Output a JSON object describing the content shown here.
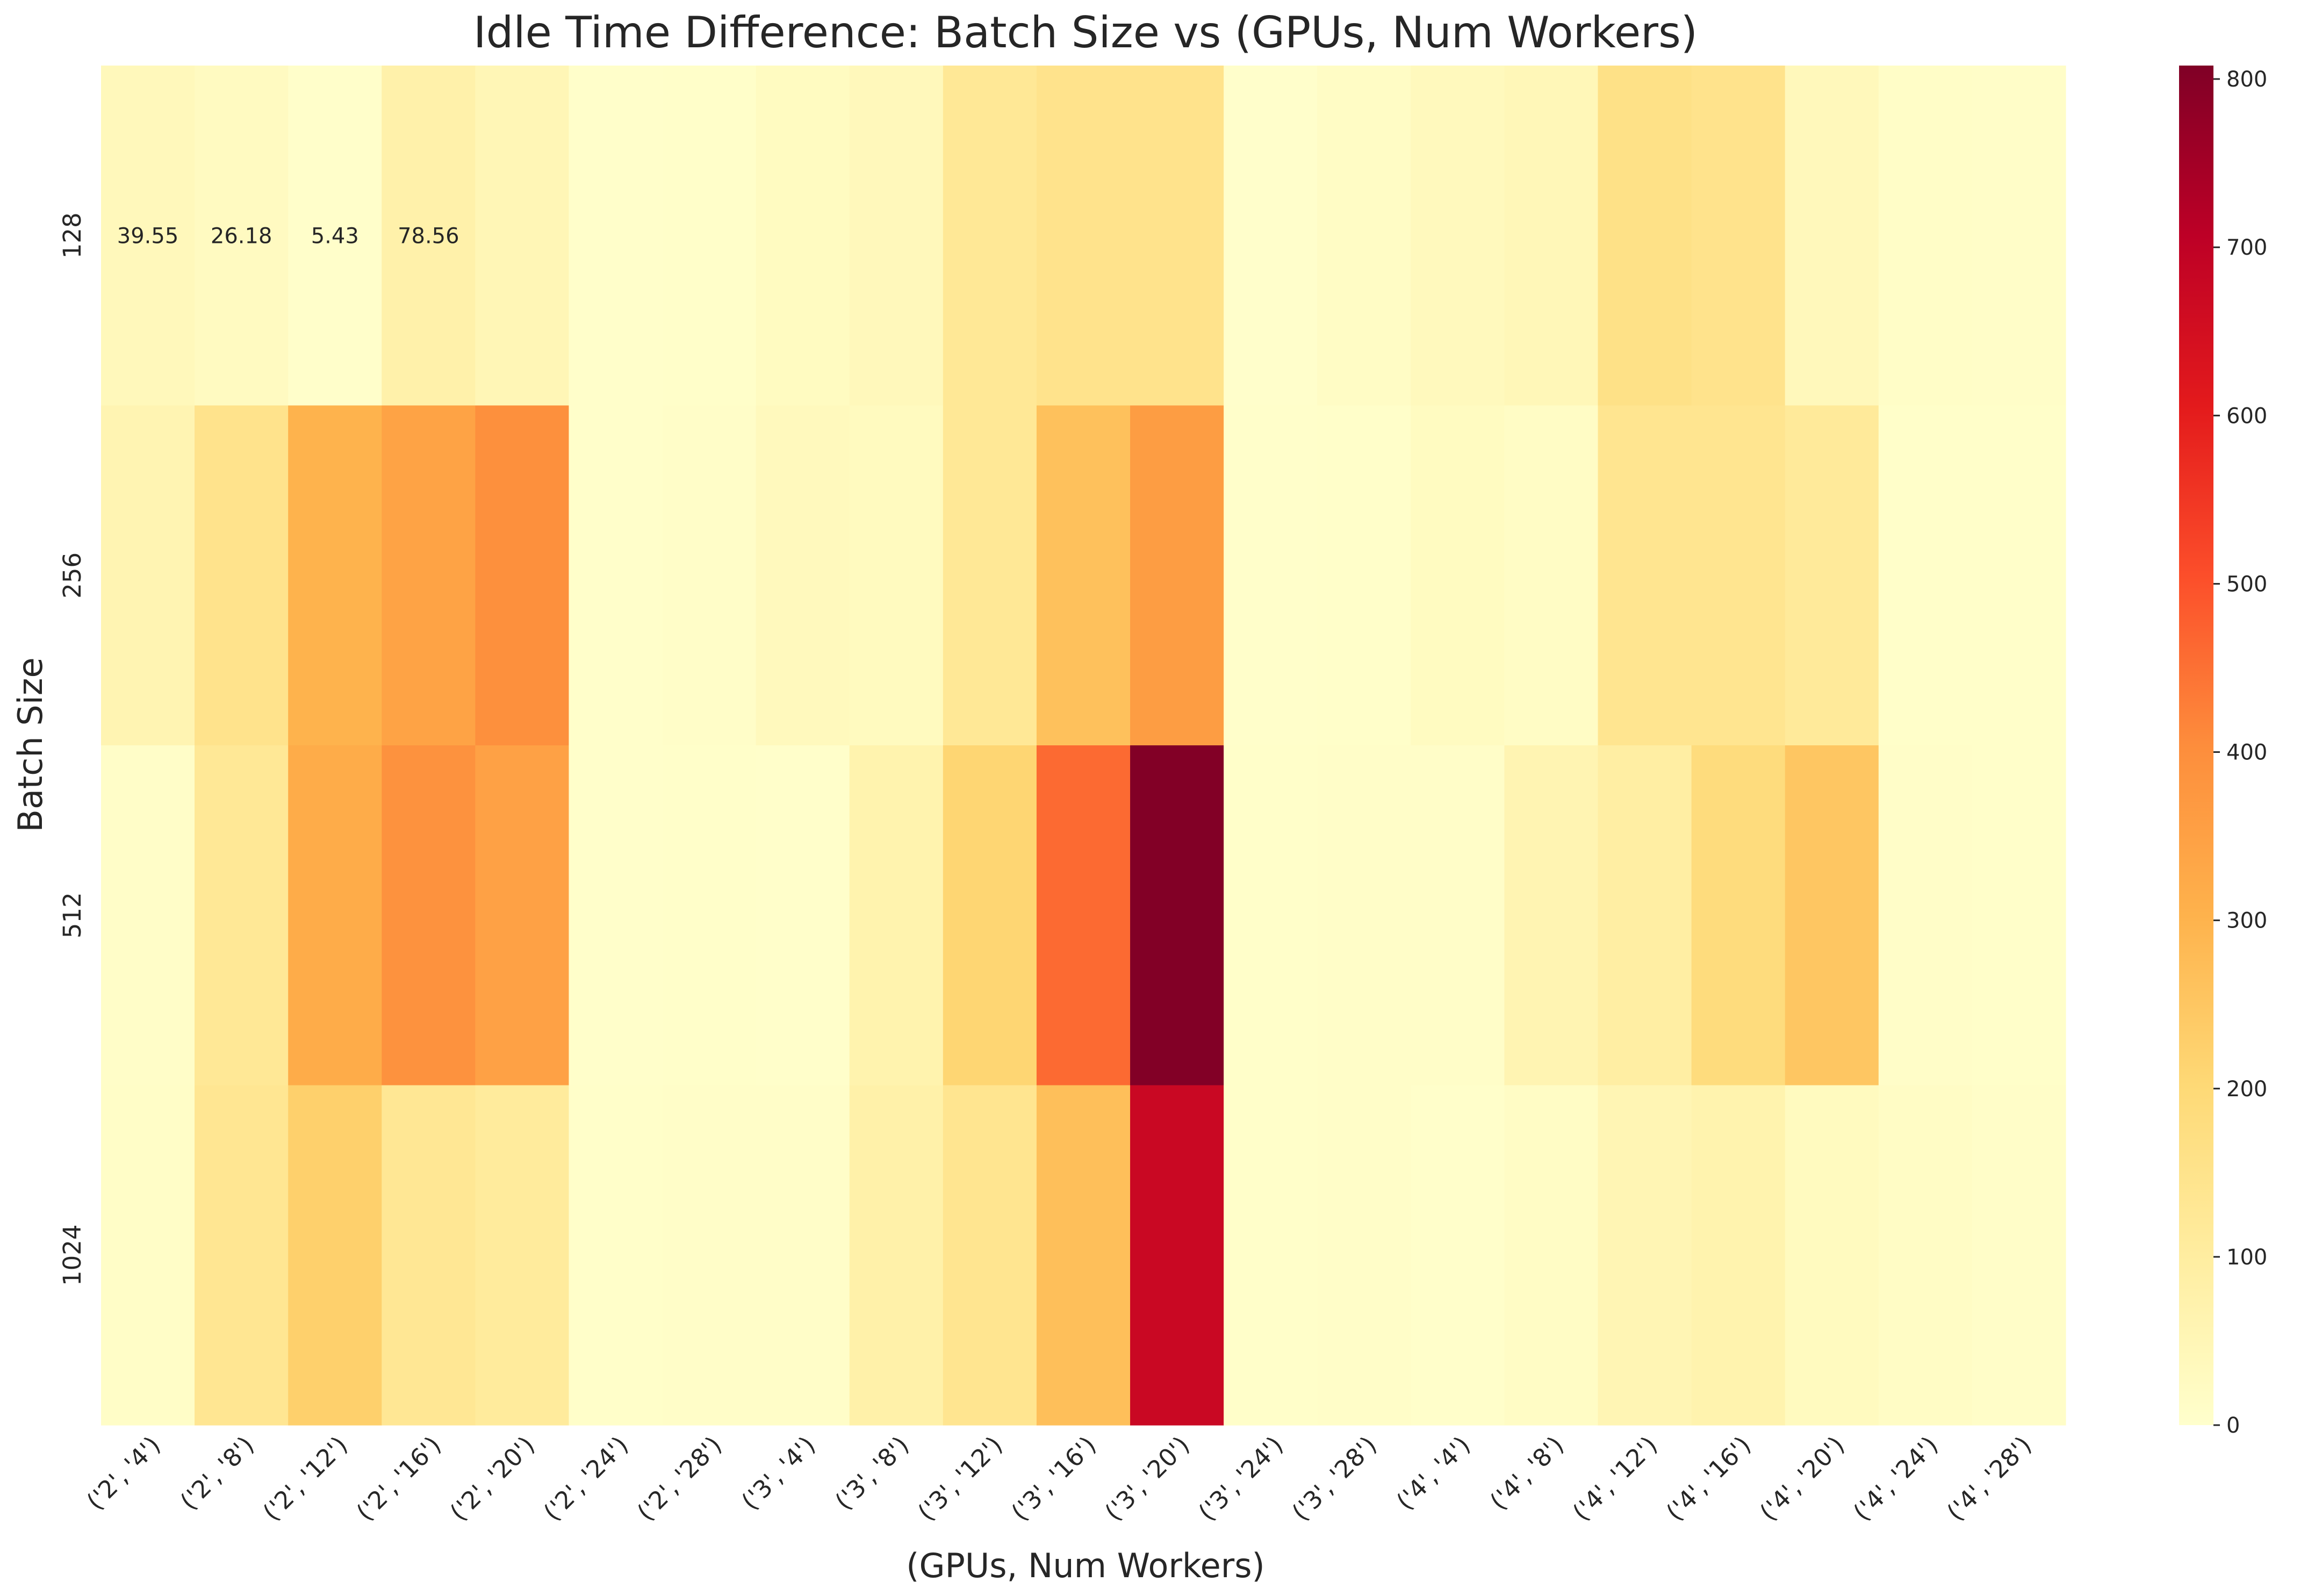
{
  "chart_data": {
    "type": "heatmap",
    "title": "Idle Time Difference: Batch Size vs (GPUs, Num Workers)",
    "xlabel": "(GPUs, Num Workers)",
    "ylabel": "Batch Size",
    "x_categories": [
      "('2', '4')",
      "('2', '8')",
      "('2', '12')",
      "('2', '16')",
      "('2', '20')",
      "('2', '24')",
      "('2', '28')",
      "('3', '4')",
      "('3', '8')",
      "('3', '12')",
      "('3', '16')",
      "('3', '20')",
      "('3', '24')",
      "('3', '28')",
      "('4', '4')",
      "('4', '8')",
      "('4', '12')",
      "('4', '16')",
      "('4', '20')",
      "('4', '24')",
      "('4', '28')"
    ],
    "y_categories": [
      "128",
      "256",
      "512",
      "1024"
    ],
    "values": [
      [
        39.55,
        26.18,
        5.43,
        78.56,
        50,
        4,
        8,
        25,
        40,
        125,
        150,
        150,
        3,
        15,
        35,
        45,
        160,
        150,
        40,
        12,
        10
      ],
      [
        60,
        150,
        300,
        345,
        395,
        5,
        10,
        35,
        30,
        125,
        265,
        360,
        5,
        8,
        25,
        15,
        140,
        140,
        115,
        8,
        6
      ],
      [
        10,
        125,
        320,
        390,
        350,
        5,
        8,
        5,
        70,
        210,
        460,
        805,
        6,
        10,
        10,
        60,
        95,
        185,
        250,
        10,
        8
      ],
      [
        12,
        135,
        225,
        130,
        110,
        8,
        10,
        10,
        80,
        140,
        270,
        675,
        8,
        10,
        5,
        15,
        55,
        70,
        30,
        15,
        10
      ]
    ],
    "annotated_cells": [
      {
        "row": 0,
        "col": 0,
        "label": "39.55"
      },
      {
        "row": 0,
        "col": 1,
        "label": "26.18"
      },
      {
        "row": 0,
        "col": 2,
        "label": "5.43"
      },
      {
        "row": 0,
        "col": 3,
        "label": "78.56"
      }
    ],
    "colorscale": "YlOrRd",
    "vmin": 0,
    "vmax": 808,
    "colorbar_ticks": [
      "0",
      "100",
      "200",
      "300",
      "400",
      "500",
      "600",
      "700",
      "800"
    ],
    "grid": false
  }
}
